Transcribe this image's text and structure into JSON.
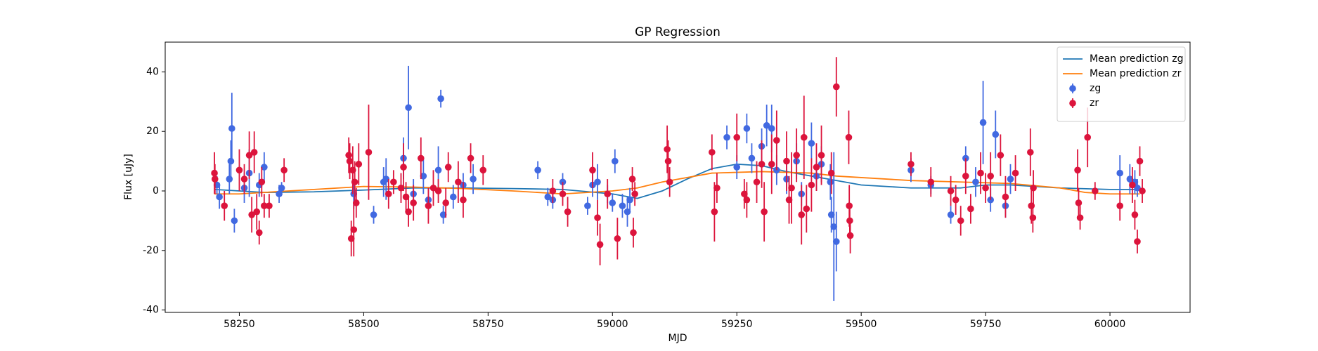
{
  "chart_data": {
    "type": "errorbar",
    "title": "GP Regression",
    "x_label": "MJD",
    "y_label": "Flux [uJy]",
    "xlim": [
      58101,
      60161
    ],
    "ylim": [
      -40.8,
      50
    ],
    "xticks": [
      58250,
      58500,
      58750,
      59000,
      59250,
      59500,
      59750,
      60000
    ],
    "yticks": [
      -40,
      -20,
      0,
      20,
      40
    ],
    "legend": "upper right",
    "series": [
      {
        "name": "Mean prediction zg",
        "kind": "line",
        "color": "#1f77b4",
        "x": [
          58200,
          58300,
          58400,
          58500,
          58600,
          58700,
          58800,
          58900,
          59000,
          59050,
          59100,
          59150,
          59200,
          59250,
          59300,
          59350,
          59400,
          59450,
          59500,
          59600,
          59700,
          59750,
          59800,
          59900,
          60000,
          60060
        ],
        "values": [
          0.5,
          -0.5,
          -0.3,
          0.3,
          1,
          1,
          0.8,
          0.5,
          -1,
          -2.5,
          0,
          4,
          7.5,
          9,
          8.5,
          6.5,
          5,
          3.5,
          2,
          1,
          1,
          2,
          2,
          1,
          0.5,
          0.5
        ]
      },
      {
        "name": "Mean prediction zr",
        "kind": "line",
        "color": "#ff7f0e",
        "x": [
          58200,
          58250,
          58300,
          58400,
          58500,
          58600,
          58700,
          58800,
          58900,
          59000,
          59050,
          59100,
          59200,
          59300,
          59400,
          59450,
          59500,
          59600,
          59700,
          59800,
          59900,
          59950,
          60000,
          60060
        ],
        "values": [
          -1,
          -1,
          -0.5,
          0.5,
          1.5,
          1.3,
          0.8,
          0,
          -1,
          0,
          1,
          3,
          6,
          6.5,
          6,
          5,
          4.5,
          3.5,
          3,
          2.5,
          1,
          -0.5,
          -1,
          -1
        ]
      },
      {
        "name": "zg",
        "kind": "errorbar",
        "color": "#4169e1",
        "x": [
          58205,
          58210,
          58235,
          58233,
          58230,
          58240,
          58260,
          58270,
          58290,
          58300,
          58330,
          58335,
          58480,
          58520,
          58540,
          58545,
          58580,
          58590,
          58600,
          58620,
          58630,
          58650,
          58655,
          58660,
          58680,
          58700,
          58720,
          58850,
          58870,
          58880,
          58900,
          58950,
          58960,
          58970,
          58990,
          59000,
          59005,
          59020,
          59030,
          59035,
          59230,
          59250,
          59270,
          59280,
          59300,
          59310,
          59320,
          59330,
          59350,
          59370,
          59380,
          59400,
          59410,
          59420,
          59440,
          59445,
          59450,
          59438,
          59600,
          59640,
          59680,
          59710,
          59730,
          59745,
          59760,
          59770,
          59790,
          59800,
          60020,
          60040,
          60050,
          60055
        ],
        "values": [
          2,
          -2,
          21,
          10,
          4,
          -10,
          1,
          6,
          2,
          8,
          -1,
          1,
          -1,
          -8,
          3,
          4,
          11,
          28,
          -1,
          5,
          -3,
          7,
          31,
          -8,
          -2,
          2,
          4,
          7,
          -2,
          -3,
          3,
          -5,
          2,
          3,
          -1,
          -4,
          10,
          -5,
          -7,
          -3,
          18,
          8,
          21,
          11,
          15,
          22,
          21,
          7,
          4,
          10,
          -1,
          16,
          5,
          9,
          -8,
          -12,
          -17,
          3,
          7,
          2,
          -8,
          11,
          3,
          23,
          -3,
          19,
          -5,
          4,
          6,
          4,
          3,
          1
        ],
        "errors": [
          3,
          4,
          12,
          7,
          5,
          4,
          5,
          8,
          4,
          5,
          3,
          2,
          5,
          3,
          5,
          7,
          7,
          14,
          5,
          6,
          4,
          8,
          3,
          3,
          4,
          4,
          5,
          3,
          3,
          3,
          3,
          3,
          4,
          6,
          3,
          3,
          4,
          4,
          5,
          4,
          4,
          4,
          5,
          5,
          6,
          7,
          8,
          5,
          5,
          6,
          4,
          7,
          5,
          6,
          6,
          25,
          10,
          6,
          4,
          3,
          3,
          4,
          5,
          14,
          4,
          8,
          4,
          5,
          6,
          5,
          4,
          3
        ]
      },
      {
        "name": "zr",
        "kind": "errorbar",
        "color": "#dc143c",
        "x": [
          58200,
          58201,
          58220,
          58250,
          58260,
          58270,
          58275,
          58280,
          58285,
          58290,
          58295,
          58300,
          58310,
          58340,
          58470,
          58472,
          58475,
          58478,
          58480,
          58482,
          58485,
          58490,
          58510,
          58550,
          58560,
          58575,
          58580,
          58585,
          58590,
          58600,
          58615,
          58630,
          58640,
          58650,
          58665,
          58670,
          58690,
          58700,
          58715,
          58740,
          58880,
          58900,
          58910,
          58960,
          58970,
          58975,
          58990,
          59010,
          59040,
          59042,
          59045,
          59110,
          59112,
          59115,
          59200,
          59205,
          59210,
          59250,
          59265,
          59270,
          59290,
          59300,
          59305,
          59320,
          59330,
          59350,
          59355,
          59360,
          59370,
          59380,
          59385,
          59390,
          59400,
          59410,
          59420,
          59440,
          59450,
          59475,
          59476,
          59477,
          59478,
          59600,
          59640,
          59680,
          59690,
          59700,
          59710,
          59720,
          59740,
          59750,
          59760,
          59780,
          59790,
          59810,
          59840,
          59842,
          59845,
          59846,
          59935,
          59937,
          59940,
          59955,
          59970,
          60020,
          60045,
          60050,
          60055,
          60060,
          60065
        ],
        "values": [
          6,
          4,
          -5,
          7,
          4,
          12,
          -8,
          13,
          -7,
          -14,
          3,
          -5,
          -5,
          7,
          12,
          10,
          -16,
          7,
          -13,
          3,
          -4,
          9,
          13,
          -1,
          3,
          1,
          8,
          -2,
          -7,
          -4,
          11,
          -5,
          1,
          0,
          -4,
          8,
          3,
          -3,
          11,
          7,
          0,
          -1,
          -7,
          7,
          -9,
          -18,
          -1,
          -16,
          4,
          -14,
          -1,
          14,
          10,
          3,
          13,
          -7,
          1,
          18,
          -1,
          -3,
          3,
          9,
          -7,
          9,
          17,
          10,
          -3,
          1,
          12,
          -8,
          18,
          -6,
          2,
          8,
          12,
          6,
          35,
          18,
          -5,
          -10,
          -15,
          9,
          3,
          0,
          -3,
          -10,
          5,
          -6,
          6,
          1,
          5,
          12,
          -2,
          6,
          13,
          -5,
          -9,
          1,
          7,
          -4,
          -9,
          18,
          0,
          -5,
          2,
          -8,
          -17,
          10,
          0
        ],
        "errors": [
          7,
          5,
          5,
          7,
          5,
          8,
          6,
          7,
          6,
          4,
          5,
          4,
          4,
          4,
          6,
          6,
          6,
          8,
          9,
          7,
          5,
          7,
          16,
          5,
          4,
          5,
          8,
          5,
          5,
          6,
          7,
          6,
          6,
          4,
          5,
          5,
          7,
          6,
          5,
          5,
          4,
          4,
          5,
          6,
          6,
          7,
          5,
          7,
          4,
          5,
          4,
          8,
          7,
          5,
          6,
          10,
          5,
          8,
          5,
          6,
          7,
          8,
          10,
          10,
          10,
          10,
          8,
          12,
          9,
          10,
          14,
          8,
          9,
          8,
          10,
          7,
          10,
          9,
          7,
          6,
          6,
          4,
          5,
          5,
          5,
          5,
          6,
          5,
          7,
          5,
          8,
          7,
          7,
          6,
          8,
          6,
          5,
          6,
          7,
          5,
          4,
          10,
          3,
          5,
          6,
          5,
          4,
          5,
          4
        ]
      }
    ]
  }
}
